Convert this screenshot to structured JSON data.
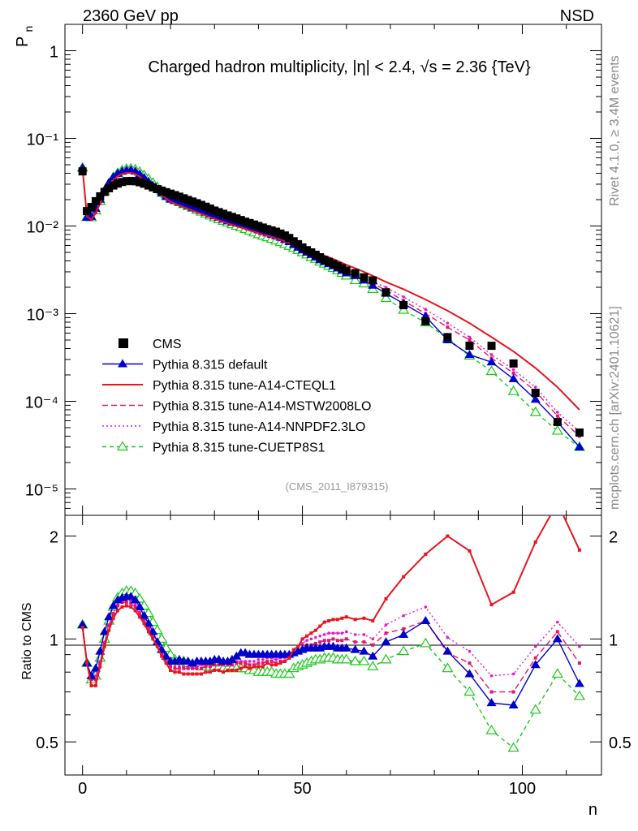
{
  "header": {
    "left_label": "2360 GeV pp",
    "right_label": "NSD",
    "side_label_top": "Rivet 4.1.0, ≥ 3.4M events",
    "side_label_bottom": "mcplots.cern.ch [arXiv:2401.10621]"
  },
  "chart_data": {
    "type": "line",
    "title": "Charged hadron multiplicity, |η| < 2.4, √s = 2.36 {TeV}",
    "analysis_tag": "(CMS_2011_I879315)",
    "xlabel": "n",
    "ylabel": "P_n",
    "ylabel_main": "P",
    "ylabel_sub": "n",
    "ratio_ylabel": "Ratio to CMS",
    "xlim": [
      -4,
      118
    ],
    "ylim": [
      5e-06,
      2
    ],
    "yscale": "log",
    "ratio_ylim": [
      0.4,
      2.3
    ],
    "x_ticks": [
      "0",
      "50",
      "100"
    ],
    "y_ticks": [
      "1",
      "10⁻¹",
      "10⁻²",
      "10⁻³",
      "10⁻⁴",
      "10⁻⁵"
    ],
    "ratio_ticks": [
      "0.5",
      "1",
      "2"
    ],
    "legend_position": "left-middle",
    "x": [
      0,
      1,
      2,
      3,
      4,
      5,
      6,
      7,
      8,
      9,
      10,
      11,
      12,
      13,
      14,
      15,
      16,
      17,
      18,
      19,
      20,
      21,
      22,
      23,
      24,
      25,
      26,
      27,
      28,
      29,
      30,
      31,
      32,
      33,
      34,
      35,
      36,
      37,
      38,
      39,
      40,
      41,
      42,
      43,
      44,
      45,
      46,
      47,
      48,
      49,
      50,
      51,
      52,
      53,
      54,
      55,
      56,
      57,
      58,
      59,
      60,
      62,
      64,
      66,
      69,
      73,
      78,
      83,
      88,
      93,
      98,
      103,
      108,
      113
    ],
    "series": [
      {
        "name": "CMS",
        "color": "#000000",
        "marker": "square",
        "values": [
          0.042,
          0.0148,
          0.0165,
          0.0192,
          0.0218,
          0.0245,
          0.027,
          0.029,
          0.0305,
          0.0318,
          0.0325,
          0.0327,
          0.0324,
          0.0316,
          0.0304,
          0.029,
          0.0276,
          0.0264,
          0.0253,
          0.0243,
          0.0234,
          0.0225,
          0.0216,
          0.0207,
          0.0198,
          0.019,
          0.0182,
          0.0174,
          0.0166,
          0.0158,
          0.015,
          0.0144,
          0.0138,
          0.0132,
          0.0127,
          0.0122,
          0.0117,
          0.0112,
          0.0108,
          0.0104,
          0.01,
          0.0096,
          0.0092,
          0.0089,
          0.0086,
          0.0082,
          0.0078,
          0.0073,
          0.0067,
          0.0062,
          0.0057,
          0.0053,
          0.005,
          0.0047,
          0.0044,
          0.0041,
          0.0039,
          0.0037,
          0.0035,
          0.0033,
          0.0031,
          0.0029,
          0.0026,
          0.0024,
          0.00175,
          0.00125,
          0.00082,
          0.00054,
          0.00043,
          0.00043,
          0.00027,
          0.000125,
          5.8e-05,
          4.4e-05
        ],
        "ratio": [
          1,
          1,
          1,
          1,
          1,
          1,
          1,
          1,
          1,
          1,
          1,
          1,
          1,
          1,
          1,
          1,
          1,
          1,
          1,
          1,
          1,
          1,
          1,
          1,
          1,
          1,
          1,
          1,
          1,
          1,
          1,
          1,
          1,
          1,
          1,
          1,
          1,
          1,
          1,
          1,
          1,
          1,
          1,
          1,
          1,
          1,
          1,
          1,
          1,
          1,
          1,
          1,
          1,
          1,
          1,
          1,
          1,
          1,
          1,
          1,
          1,
          1,
          1,
          1,
          1,
          1,
          1,
          1,
          1,
          1,
          1,
          1,
          1,
          1
        ]
      },
      {
        "name": "Pythia 8.315 default",
        "color": "#0000cc",
        "marker": "filled-triangle",
        "dash": "",
        "values": [
          0.046,
          0.0125,
          0.0128,
          0.0158,
          0.0201,
          0.0257,
          0.0313,
          0.0362,
          0.0397,
          0.042,
          0.0432,
          0.0435,
          0.0421,
          0.0391,
          0.0357,
          0.0322,
          0.029,
          0.026,
          0.0236,
          0.0216,
          0.0201,
          0.0194,
          0.0187,
          0.0178,
          0.017,
          0.0162,
          0.0157,
          0.015,
          0.0143,
          0.0136,
          0.013,
          0.0125,
          0.0119,
          0.0114,
          0.011,
          0.0108,
          0.0106,
          0.0102,
          0.0097,
          0.0094,
          0.009,
          0.0086,
          0.0083,
          0.008,
          0.0077,
          0.0074,
          0.007,
          0.0066,
          0.0061,
          0.0057,
          0.0053,
          0.005,
          0.0047,
          0.0044,
          0.0041,
          0.0039,
          0.0037,
          0.0035,
          0.0033,
          0.0031,
          0.0029,
          0.0027,
          0.0024,
          0.0021,
          0.0017,
          0.0013,
          0.00093,
          0.0005,
          0.00034,
          0.00028,
          0.00018,
          0.000105,
          5.8e-05,
          3e-05
        ],
        "ratio": [
          1.1,
          0.85,
          0.78,
          0.82,
          0.92,
          1.05,
          1.16,
          1.25,
          1.3,
          1.32,
          1.33,
          1.33,
          1.3,
          1.24,
          1.17,
          1.11,
          1.05,
          0.98,
          0.93,
          0.89,
          0.86,
          0.86,
          0.87,
          0.86,
          0.86,
          0.85,
          0.86,
          0.86,
          0.86,
          0.86,
          0.87,
          0.87,
          0.86,
          0.86,
          0.87,
          0.89,
          0.91,
          0.91,
          0.9,
          0.9,
          0.9,
          0.9,
          0.9,
          0.9,
          0.9,
          0.9,
          0.9,
          0.9,
          0.91,
          0.92,
          0.93,
          0.94,
          0.94,
          0.94,
          0.94,
          0.95,
          0.95,
          0.95,
          0.94,
          0.94,
          0.94,
          0.93,
          0.92,
          0.89,
          0.98,
          1.03,
          1.13,
          0.92,
          0.79,
          0.65,
          0.64,
          0.84,
          1.0,
          0.74
        ]
      },
      {
        "name": "Pythia 8.315 tune-A14-CTEQL1",
        "color": "#e8141e",
        "marker": "none",
        "dash": "",
        "values": [
          0.045,
          0.0128,
          0.0118,
          0.014,
          0.018,
          0.0232,
          0.0286,
          0.0334,
          0.037,
          0.0394,
          0.0405,
          0.0405,
          0.0392,
          0.0366,
          0.0336,
          0.0305,
          0.0276,
          0.025,
          0.0226,
          0.0206,
          0.019,
          0.018,
          0.0172,
          0.0164,
          0.0157,
          0.015,
          0.0144,
          0.0138,
          0.0132,
          0.0126,
          0.0121,
          0.0116,
          0.0111,
          0.0107,
          0.0103,
          0.0099,
          0.0096,
          0.0093,
          0.0089,
          0.0086,
          0.0083,
          0.008,
          0.0078,
          0.0075,
          0.0072,
          0.007,
          0.0067,
          0.0064,
          0.0062,
          0.0059,
          0.0057,
          0.0054,
          0.0052,
          0.005,
          0.0048,
          0.0046,
          0.0044,
          0.0042,
          0.004,
          0.0038,
          0.0036,
          0.0033,
          0.003,
          0.0027,
          0.0023,
          0.0019,
          0.00145,
          0.00108,
          0.00078,
          0.00054,
          0.00037,
          0.00024,
          0.000145,
          8e-05
        ],
        "ratio": [
          1.08,
          0.85,
          0.73,
          0.73,
          0.83,
          0.95,
          1.06,
          1.15,
          1.21,
          1.24,
          1.25,
          1.24,
          1.21,
          1.16,
          1.11,
          1.05,
          1.0,
          0.95,
          0.89,
          0.85,
          0.81,
          0.8,
          0.8,
          0.79,
          0.79,
          0.79,
          0.79,
          0.79,
          0.8,
          0.8,
          0.81,
          0.81,
          0.8,
          0.81,
          0.81,
          0.81,
          0.82,
          0.83,
          0.82,
          0.83,
          0.83,
          0.83,
          0.85,
          0.84,
          0.84,
          0.85,
          0.86,
          0.88,
          0.93,
          0.95,
          1.0,
          1.02,
          1.04,
          1.06,
          1.09,
          1.12,
          1.13,
          1.14,
          1.14,
          1.15,
          1.16,
          1.14,
          1.15,
          1.13,
          1.31,
          1.52,
          1.77,
          2.0,
          1.81,
          1.26,
          1.37,
          1.92,
          2.5,
          1.82
        ]
      },
      {
        "name": "Pythia 8.315 tune-A14-MSTW2008LO",
        "color": "#e8146e",
        "marker": "small-square",
        "dash": "7 4",
        "values": [
          0.045,
          0.0128,
          0.0119,
          0.0142,
          0.0182,
          0.0235,
          0.029,
          0.0338,
          0.0375,
          0.0399,
          0.0412,
          0.0412,
          0.0399,
          0.0373,
          0.0343,
          0.0312,
          0.0282,
          0.0255,
          0.0231,
          0.0211,
          0.0194,
          0.0184,
          0.0177,
          0.017,
          0.0163,
          0.0156,
          0.0149,
          0.0143,
          0.0137,
          0.0131,
          0.0125,
          0.012,
          0.0116,
          0.0111,
          0.0106,
          0.0103,
          0.0099,
          0.0095,
          0.0091,
          0.0088,
          0.0085,
          0.0082,
          0.0079,
          0.0076,
          0.0073,
          0.007,
          0.0067,
          0.0064,
          0.006,
          0.0057,
          0.0054,
          0.0051,
          0.0048,
          0.0046,
          0.0043,
          0.0041,
          0.0039,
          0.0037,
          0.0035,
          0.0033,
          0.0031,
          0.0028,
          0.0025,
          0.0022,
          0.00185,
          0.0014,
          0.001,
          0.0007,
          0.0005,
          0.00031,
          0.00021,
          0.00013,
          6.8e-05,
          4e-05
        ],
        "ratio": [
          1.1,
          0.85,
          0.76,
          0.76,
          0.85,
          0.97,
          1.09,
          1.18,
          1.25,
          1.28,
          1.28,
          1.27,
          1.24,
          1.18,
          1.13,
          1.07,
          1.01,
          0.96,
          0.9,
          0.87,
          0.83,
          0.82,
          0.82,
          0.82,
          0.82,
          0.82,
          0.82,
          0.82,
          0.83,
          0.83,
          0.84,
          0.84,
          0.84,
          0.84,
          0.84,
          0.85,
          0.85,
          0.85,
          0.84,
          0.84,
          0.85,
          0.85,
          0.86,
          0.86,
          0.85,
          0.86,
          0.86,
          0.88,
          0.9,
          0.92,
          0.94,
          0.96,
          0.96,
          0.97,
          0.98,
          0.99,
          0.99,
          1.0,
          0.99,
          0.99,
          1.0,
          0.98,
          0.98,
          0.96,
          1.04,
          1.07,
          1.13,
          0.91,
          0.85,
          0.7,
          0.7,
          0.88,
          1.05,
          0.85
        ]
      },
      {
        "name": "Pythia 8.315 tune-A14-NNPDF2.3LO",
        "color": "#e819c6",
        "marker": "small-dot",
        "dash": "2 3",
        "values": [
          0.045,
          0.0128,
          0.012,
          0.0143,
          0.0183,
          0.0236,
          0.0291,
          0.034,
          0.0377,
          0.0401,
          0.0413,
          0.0413,
          0.04,
          0.0375,
          0.0344,
          0.0313,
          0.0283,
          0.0256,
          0.0232,
          0.0212,
          0.0195,
          0.0185,
          0.0178,
          0.0171,
          0.0164,
          0.0157,
          0.015,
          0.0144,
          0.0138,
          0.0132,
          0.0126,
          0.0121,
          0.0117,
          0.0112,
          0.0107,
          0.0104,
          0.01,
          0.0096,
          0.0092,
          0.0089,
          0.0086,
          0.0083,
          0.008,
          0.0077,
          0.0074,
          0.0071,
          0.0068,
          0.0065,
          0.0061,
          0.0058,
          0.0055,
          0.0052,
          0.0049,
          0.0047,
          0.0044,
          0.0042,
          0.004,
          0.0038,
          0.0036,
          0.0034,
          0.0032,
          0.0029,
          0.0026,
          0.0023,
          0.002,
          0.00155,
          0.00112,
          0.00078,
          0.00054,
          0.00034,
          0.00023,
          0.000145,
          7.5e-05,
          4.5e-05
        ],
        "ratio": [
          1.1,
          0.86,
          0.77,
          0.78,
          0.86,
          0.98,
          1.1,
          1.19,
          1.26,
          1.29,
          1.3,
          1.29,
          1.26,
          1.2,
          1.15,
          1.09,
          1.03,
          0.97,
          0.91,
          0.88,
          0.84,
          0.83,
          0.83,
          0.83,
          0.83,
          0.83,
          0.83,
          0.84,
          0.84,
          0.84,
          0.85,
          0.85,
          0.85,
          0.85,
          0.85,
          0.86,
          0.86,
          0.86,
          0.86,
          0.86,
          0.87,
          0.87,
          0.88,
          0.88,
          0.87,
          0.88,
          0.88,
          0.9,
          0.92,
          0.95,
          0.97,
          0.99,
          1.0,
          1.01,
          1.02,
          1.03,
          1.04,
          1.04,
          1.04,
          1.04,
          1.05,
          1.03,
          1.03,
          1.0,
          1.1,
          1.17,
          1.24,
          1.01,
          0.92,
          0.78,
          0.79,
          0.95,
          1.12,
          0.95
        ]
      },
      {
        "name": "Pythia 8.315 tune-CUETP8S1",
        "color": "#19c819",
        "marker": "open-triangle",
        "dash": "5 4",
        "values": [
          0.046,
          0.0126,
          0.0125,
          0.015,
          0.0191,
          0.0246,
          0.0305,
          0.036,
          0.0403,
          0.0432,
          0.0448,
          0.0452,
          0.0441,
          0.0414,
          0.038,
          0.0344,
          0.031,
          0.0279,
          0.0252,
          0.0229,
          0.021,
          0.0196,
          0.0186,
          0.0177,
          0.0168,
          0.016,
          0.0152,
          0.0145,
          0.0138,
          0.0131,
          0.0125,
          0.0119,
          0.0114,
          0.0109,
          0.0104,
          0.01,
          0.0096,
          0.0092,
          0.0088,
          0.0084,
          0.008,
          0.0077,
          0.0074,
          0.0071,
          0.0068,
          0.0065,
          0.0062,
          0.0059,
          0.0056,
          0.0053,
          0.005,
          0.0047,
          0.0044,
          0.0042,
          0.0039,
          0.0037,
          0.0035,
          0.0033,
          0.0031,
          0.0029,
          0.0027,
          0.0024,
          0.0022,
          0.0019,
          0.0015,
          0.0011,
          0.00079,
          0.00052,
          0.00033,
          0.00022,
          0.00013,
          7.5e-05,
          4.6e-05,
          3e-05
        ],
        "ratio": [
          1.1,
          0.85,
          0.76,
          0.78,
          0.88,
          1.0,
          1.13,
          1.24,
          1.32,
          1.36,
          1.38,
          1.38,
          1.36,
          1.31,
          1.25,
          1.19,
          1.12,
          1.06,
          1.0,
          0.94,
          0.9,
          0.87,
          0.86,
          0.86,
          0.85,
          0.84,
          0.84,
          0.83,
          0.83,
          0.83,
          0.83,
          0.83,
          0.82,
          0.82,
          0.82,
          0.82,
          0.82,
          0.82,
          0.81,
          0.81,
          0.8,
          0.8,
          0.8,
          0.8,
          0.79,
          0.79,
          0.79,
          0.79,
          0.82,
          0.83,
          0.84,
          0.85,
          0.86,
          0.87,
          0.87,
          0.88,
          0.88,
          0.88,
          0.87,
          0.87,
          0.87,
          0.86,
          0.86,
          0.83,
          0.87,
          0.92,
          0.97,
          0.82,
          0.7,
          0.54,
          0.48,
          0.62,
          0.79,
          0.68
        ]
      }
    ]
  }
}
